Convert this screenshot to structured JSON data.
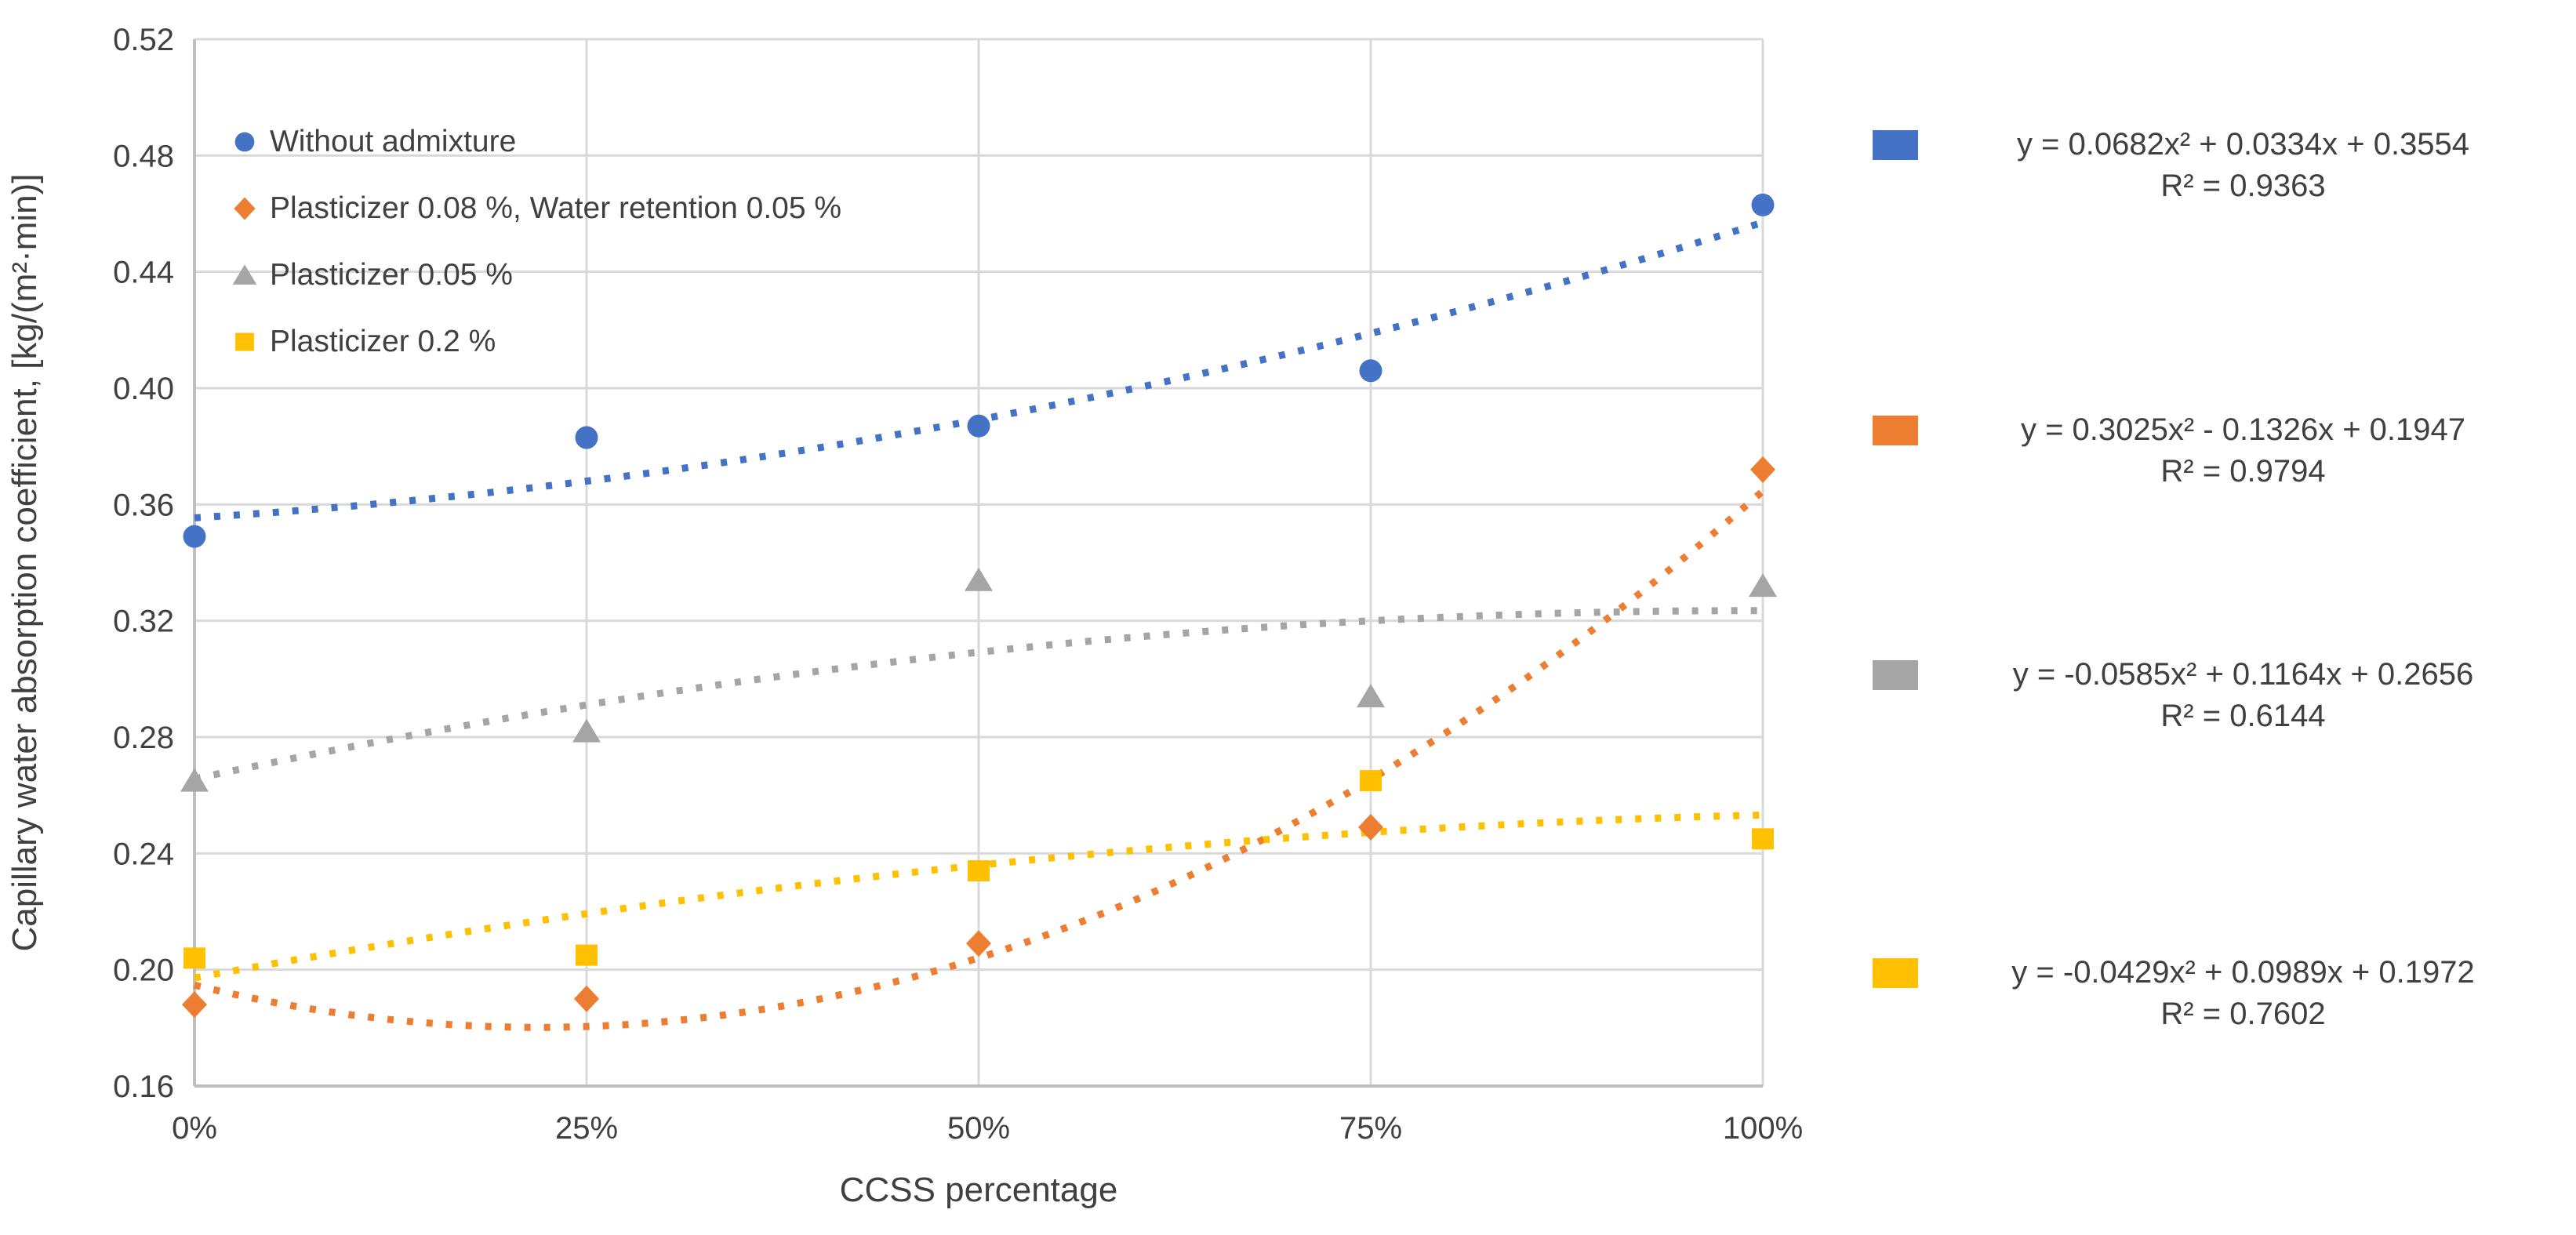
{
  "chart_data": {
    "type": "scatter",
    "title": "",
    "xlabel": "CCSS percentage",
    "ylabel": "Capillary water absorption coefficient, [kg/(m²·min)]",
    "x_categories": [
      "0%",
      "25%",
      "50%",
      "75%",
      "100%"
    ],
    "x_values": [
      0,
      0.25,
      0.5,
      0.75,
      1
    ],
    "ylim": [
      0.16,
      0.52
    ],
    "y_tick_step": 0.04,
    "y_tick_format_decimals": 2,
    "grid": true,
    "legend_position": "top-left-inside",
    "trendline_style": "dotted-quadratic",
    "colors": {
      "gridline": "#d9d9d9",
      "axis_line": "#bfbfbf",
      "text": "#404040"
    },
    "series": [
      {
        "id": "without-admixture",
        "name": "Without admixture",
        "marker": "circle",
        "color": "#4472C4",
        "values": [
          0.349,
          0.383,
          0.387,
          0.406,
          0.463
        ],
        "trend": {
          "a": 0.0682,
          "b": 0.0334,
          "c": 0.3554
        },
        "equation": "y = 0.0682x² + 0.0334x + 0.3554",
        "r2": "R² = 0.9363"
      },
      {
        "id": "plasticizer-008-water-retention-005",
        "name": "Plasticizer 0.08 %, Water retention 0.05 %",
        "marker": "diamond",
        "color": "#ED7D31",
        "values": [
          0.188,
          0.19,
          0.209,
          0.249,
          0.372
        ],
        "trend": {
          "a": 0.3025,
          "b": -0.1326,
          "c": 0.1947
        },
        "equation": "y = 0.3025x² - 0.1326x + 0.1947",
        "r2": "R² = 0.9794"
      },
      {
        "id": "plasticizer-005",
        "name": "Plasticizer 0.05 %",
        "marker": "triangle",
        "color": "#A5A5A5",
        "values": [
          0.265,
          0.282,
          0.334,
          0.294,
          0.332
        ],
        "trend": {
          "a": -0.0585,
          "b": 0.1164,
          "c": 0.2656
        },
        "equation": "y = -0.0585x² + 0.1164x + 0.2656",
        "r2": "R² = 0.6144"
      },
      {
        "id": "plasticizer-02",
        "name": "Plasticizer 0.2 %",
        "marker": "square",
        "color": "#FFC000",
        "values": [
          0.204,
          0.205,
          0.234,
          0.265,
          0.245
        ],
        "trend": {
          "a": -0.0429,
          "b": 0.0989,
          "c": 0.1972
        },
        "equation": "y = -0.0429x² + 0.0989x + 0.1972",
        "r2": "R² = 0.7602"
      }
    ]
  }
}
